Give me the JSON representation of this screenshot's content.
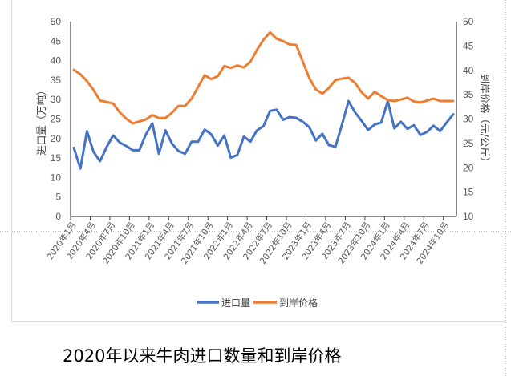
{
  "chart_data": {
    "type": "line",
    "caption": "2020年以来牛肉进口数量和到岸价格",
    "categories": [
      "2020年1月",
      "2020年2月",
      "2020年3月",
      "2020年4月",
      "2020年5月",
      "2020年6月",
      "2020年7月",
      "2020年8月",
      "2020年9月",
      "2020年10月",
      "2020年11月",
      "2020年12月",
      "2021年1月",
      "2021年2月",
      "2021年3月",
      "2021年4月",
      "2021年5月",
      "2021年6月",
      "2021年7月",
      "2021年8月",
      "2021年9月",
      "2021年10月",
      "2021年11月",
      "2021年12月",
      "2022年1月",
      "2022年2月",
      "2022年3月",
      "2022年4月",
      "2022年5月",
      "2022年6月",
      "2022年7月",
      "2022年8月",
      "2022年9月",
      "2022年10月",
      "2022年11月",
      "2022年12月",
      "2023年1月",
      "2023年2月",
      "2023年3月",
      "2023年4月",
      "2023年5月",
      "2023年6月",
      "2023年7月",
      "2023年8月",
      "2023年9月",
      "2023年10月",
      "2023年11月",
      "2023年12月",
      "2024年1月",
      "2024年2月",
      "2024年3月",
      "2024年4月",
      "2024年5月",
      "2024年6月",
      "2024年7月",
      "2024年8月",
      "2024年9月",
      "2024年10月",
      "2024年11月"
    ],
    "tick_label_every": 3,
    "series": [
      {
        "name": "进口量",
        "axis": "left",
        "color": "#4472C4",
        "values": [
          17.6,
          12.3,
          21.9,
          16.6,
          14.2,
          17.8,
          20.8,
          19.0,
          18.1,
          17.0,
          17.0,
          21.0,
          23.9,
          16.1,
          22.1,
          18.7,
          16.8,
          16.1,
          19.2,
          19.2,
          22.3,
          21.1,
          18.2,
          20.8,
          15.1,
          15.8,
          20.5,
          19.2,
          22.1,
          23.2,
          27.1,
          27.4,
          24.8,
          25.5,
          25.3,
          24.3,
          22.9,
          19.5,
          21.2,
          18.3,
          17.9,
          23.6,
          29.6,
          26.7,
          24.5,
          22.2,
          23.6,
          24.1,
          29.6,
          22.6,
          24.3,
          22.5,
          23.4,
          20.9,
          21.7,
          23.3,
          21.9,
          24.1,
          26.2
        ]
      },
      {
        "name": "到岸价格",
        "axis": "right",
        "color": "#ED7D31",
        "values": [
          40.1,
          39.2,
          37.8,
          36.0,
          33.8,
          33.5,
          33.2,
          31.4,
          30.1,
          29.1,
          29.5,
          29.9,
          30.8,
          30.2,
          30.2,
          31.3,
          32.7,
          32.7,
          34.2,
          36.6,
          39.0,
          38.2,
          38.8,
          40.9,
          40.5,
          41.0,
          40.6,
          41.8,
          44.2,
          46.3,
          47.8,
          46.5,
          46.0,
          45.3,
          45.2,
          41.8,
          38.4,
          36.1,
          35.2,
          36.4,
          38.0,
          38.3,
          38.5,
          37.4,
          35.5,
          34.2,
          35.6,
          34.7,
          33.9,
          33.7,
          34.0,
          34.4,
          33.6,
          33.4,
          33.8,
          34.2,
          33.7,
          33.7,
          33.7
        ]
      }
    ],
    "ylabel": "进口量（万吨）",
    "ylabel_right": "到岸价格（元/公斤）",
    "ylim": [
      0,
      50
    ],
    "ylim_right": [
      10,
      50
    ],
    "yticks": [
      "0",
      "5",
      "10",
      "15",
      "20",
      "25",
      "30",
      "35",
      "40",
      "45",
      "50"
    ],
    "yticks_right": [
      "10",
      "15",
      "20",
      "25",
      "30",
      "35",
      "40",
      "45",
      "50"
    ],
    "grid": false,
    "legend_position": "bottom"
  }
}
